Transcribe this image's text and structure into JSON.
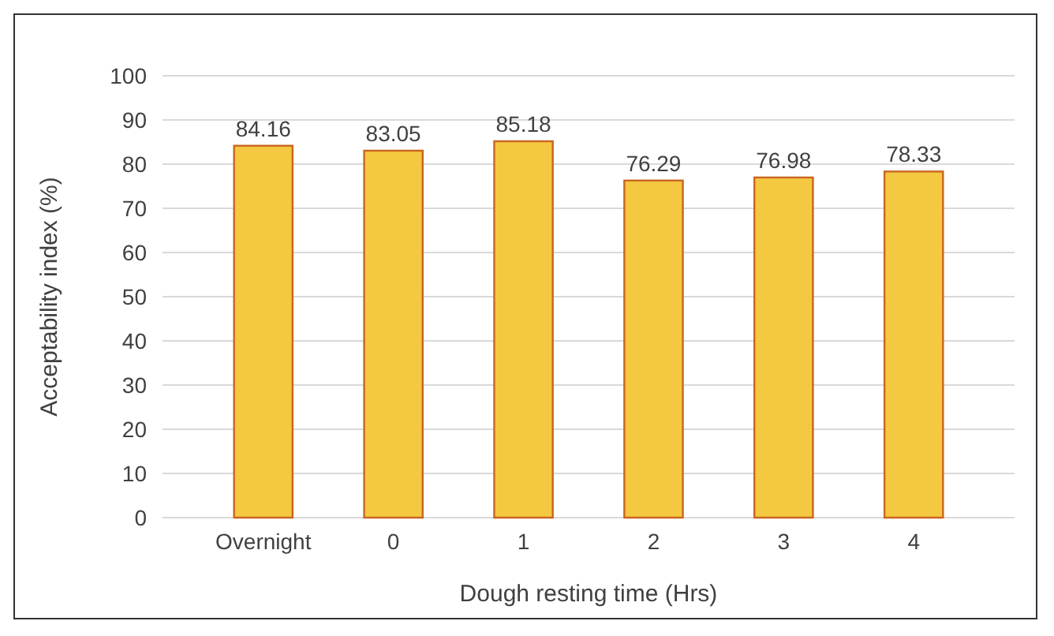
{
  "chart_data": {
    "type": "bar",
    "xlabel": "Dough resting time (Hrs)",
    "ylabel": "Acceptability index (%)",
    "categories": [
      "Overnight",
      "0",
      "1",
      "2",
      "3",
      "4"
    ],
    "values": [
      84.16,
      83.05,
      85.18,
      76.29,
      76.98,
      78.33
    ],
    "color": "#f5c842",
    "ylim": [
      0,
      100
    ],
    "yticks": [
      0,
      10,
      20,
      30,
      40,
      50,
      60,
      70,
      80,
      90,
      100
    ],
    "grid": "y",
    "data_labels": true
  }
}
